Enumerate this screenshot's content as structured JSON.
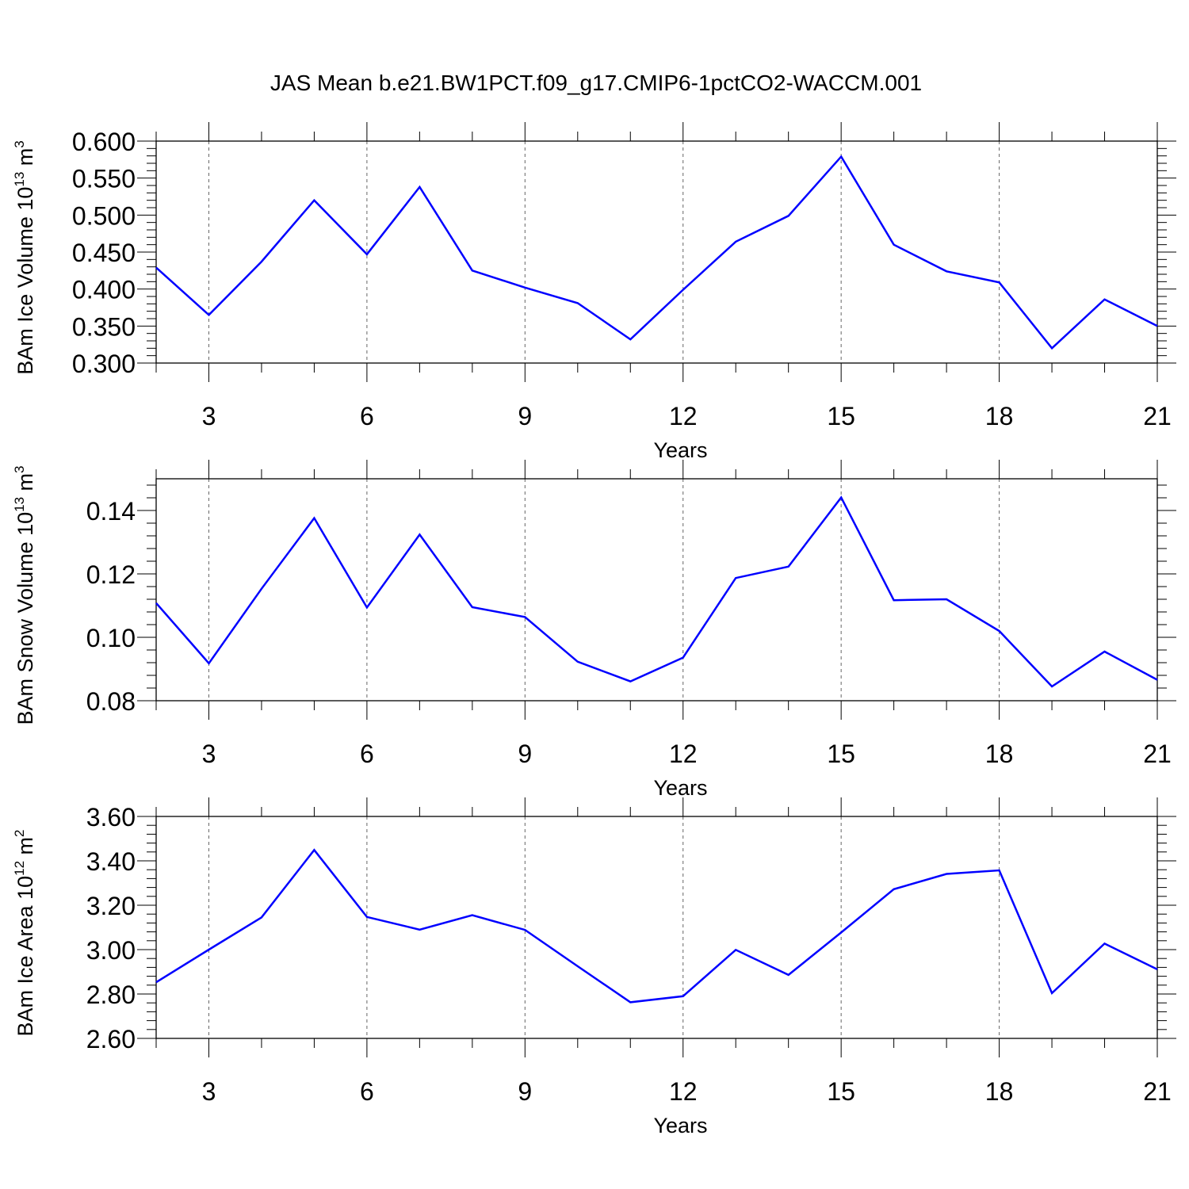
{
  "title": "JAS Mean b.e21.BW1PCT.f09_g17.CMIP6-1pctCO2-WACCM.001",
  "line_color": "#0000ff",
  "chart_data": [
    {
      "type": "line",
      "id": "ice-volume",
      "ylabel_main": "BAm Ice Volume 10",
      "ylabel_exp": "13",
      "ylabel_unit": " m",
      "ylabel_unit_exp": "3",
      "xlabel": "Years",
      "xlim": [
        2,
        21
      ],
      "ylim": [
        0.3,
        0.6
      ],
      "x_ticks": [
        3,
        6,
        9,
        12,
        15,
        18,
        21
      ],
      "x_tick_labels": [
        "3",
        "6",
        "9",
        "12",
        "15",
        "18",
        "21"
      ],
      "y_ticks": [
        0.3,
        0.35,
        0.4,
        0.45,
        0.5,
        0.55,
        0.6
      ],
      "y_tick_labels": [
        "0.300",
        "0.350",
        "0.400",
        "0.450",
        "0.500",
        "0.550",
        "0.600"
      ],
      "y_minor_step": 0.01,
      "series": [
        {
          "name": "BAm Ice Volume",
          "x": [
            2,
            3,
            4,
            5,
            6,
            7,
            8,
            9,
            10,
            11,
            12,
            13,
            14,
            15,
            16,
            17,
            18,
            19,
            20,
            21
          ],
          "values": [
            0.429,
            0.365,
            0.437,
            0.52,
            0.447,
            0.538,
            0.425,
            0.402,
            0.381,
            0.332,
            0.399,
            0.464,
            0.499,
            0.579,
            0.46,
            0.424,
            0.409,
            0.32,
            0.386,
            0.35
          ]
        }
      ]
    },
    {
      "type": "line",
      "id": "snow-volume",
      "ylabel_main": "BAm Snow Volume 10",
      "ylabel_exp": "13",
      "ylabel_unit": " m",
      "ylabel_unit_exp": "3",
      "xlabel": "Years",
      "xlim": [
        2,
        21
      ],
      "ylim": [
        0.08,
        0.15
      ],
      "x_ticks": [
        3,
        6,
        9,
        12,
        15,
        18,
        21
      ],
      "x_tick_labels": [
        "3",
        "6",
        "9",
        "12",
        "15",
        "18",
        "21"
      ],
      "y_ticks": [
        0.08,
        0.1,
        0.12,
        0.14
      ],
      "y_tick_labels": [
        "0.08",
        "0.10",
        "0.12",
        "0.14"
      ],
      "y_minor_step": 0.004,
      "series": [
        {
          "name": "BAm Snow Volume",
          "x": [
            2,
            3,
            4,
            5,
            6,
            7,
            8,
            9,
            10,
            11,
            12,
            13,
            14,
            15,
            16,
            17,
            18,
            19,
            20,
            21
          ],
          "values": [
            0.1108,
            0.0918,
            0.1153,
            0.1376,
            0.1094,
            0.1324,
            0.1095,
            0.1064,
            0.0923,
            0.0861,
            0.0936,
            0.1187,
            0.1223,
            0.1441,
            0.1117,
            0.112,
            0.102,
            0.0845,
            0.0955,
            0.0866
          ]
        }
      ]
    },
    {
      "type": "line",
      "id": "ice-area",
      "ylabel_main": "BAm Ice Area 10",
      "ylabel_exp": "12",
      "ylabel_unit": " m",
      "ylabel_unit_exp": "2",
      "xlabel": "Years",
      "xlim": [
        2,
        21
      ],
      "ylim": [
        2.6,
        3.6
      ],
      "x_ticks": [
        3,
        6,
        9,
        12,
        15,
        18,
        21
      ],
      "x_tick_labels": [
        "3",
        "6",
        "9",
        "12",
        "15",
        "18",
        "21"
      ],
      "y_ticks": [
        2.6,
        2.8,
        3.0,
        3.2,
        3.4,
        3.6
      ],
      "y_tick_labels": [
        "2.60",
        "2.80",
        "3.00",
        "3.20",
        "3.40",
        "3.60"
      ],
      "y_minor_step": 0.04,
      "series": [
        {
          "name": "BAm Ice Area",
          "x": [
            2,
            3,
            4,
            5,
            6,
            7,
            8,
            9,
            10,
            11,
            12,
            13,
            14,
            15,
            16,
            17,
            18,
            19,
            20,
            21
          ],
          "values": [
            2.853,
            3.0,
            3.145,
            3.449,
            3.147,
            3.09,
            3.155,
            3.089,
            2.925,
            2.763,
            2.79,
            2.999,
            2.886,
            3.077,
            3.272,
            3.341,
            3.357,
            2.804,
            3.027,
            2.911
          ]
        }
      ]
    }
  ]
}
